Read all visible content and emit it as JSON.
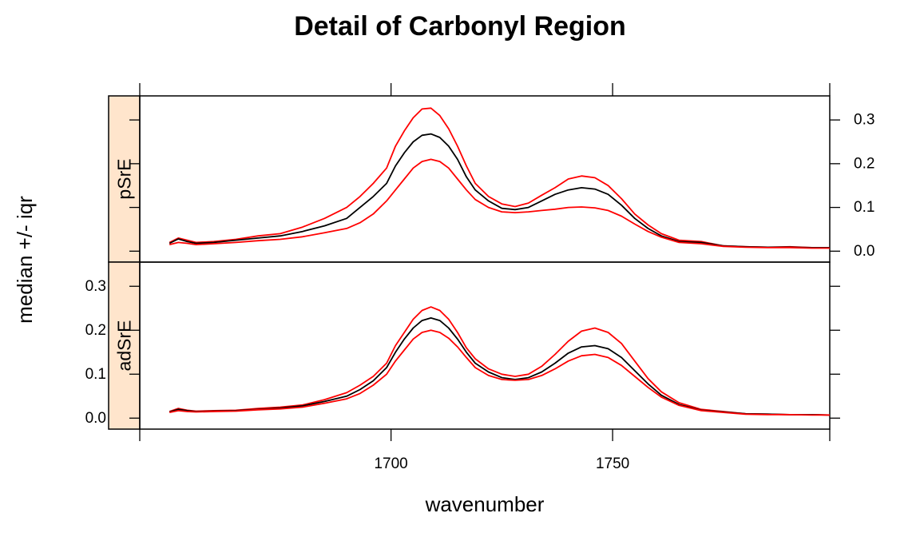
{
  "chart_data": {
    "type": "line",
    "title": "Detail of Carbonyl Region",
    "xlabel": "wavenumber",
    "ylabel": "median +/- iqr",
    "xlim": [
      1643.3,
      1799.0
    ],
    "ylim": [
      -0.025,
      0.355
    ],
    "x_ticks": [
      1700,
      1750
    ],
    "y_ticks": [
      0.0,
      0.1,
      0.2,
      0.3
    ],
    "y_tick_labels": [
      "0.0",
      "0.1",
      "0.2",
      "0.3"
    ],
    "strip_color": "#ffe5cc",
    "grid": false,
    "legend": "none",
    "panels": [
      {
        "label": "pSrE",
        "series": [
          {
            "role": "upper",
            "color": "#ff0000",
            "x": [
              1650,
              1652,
              1654,
              1656,
              1660,
              1665,
              1670,
              1675,
              1680,
              1685,
              1690,
              1693,
              1696,
              1699,
              1701,
              1703,
              1705,
              1707,
              1709,
              1711,
              1713,
              1715,
              1717,
              1719,
              1722,
              1725,
              1728,
              1731,
              1734,
              1737,
              1740,
              1743,
              1746,
              1749,
              1752,
              1755,
              1758,
              1761,
              1765,
              1770,
              1775,
              1780,
              1785,
              1790,
              1795,
              1799
            ],
            "values": [
              0.02,
              0.03,
              0.025,
              0.02,
              0.022,
              0.027,
              0.035,
              0.04,
              0.055,
              0.075,
              0.1,
              0.125,
              0.155,
              0.19,
              0.24,
              0.275,
              0.305,
              0.325,
              0.327,
              0.31,
              0.28,
              0.24,
              0.195,
              0.155,
              0.125,
              0.108,
              0.102,
              0.11,
              0.128,
              0.145,
              0.165,
              0.172,
              0.168,
              0.15,
              0.12,
              0.085,
              0.06,
              0.04,
              0.025,
              0.022,
              0.012,
              0.01,
              0.009,
              0.01,
              0.008,
              0.008
            ]
          },
          {
            "role": "median",
            "color": "#000000",
            "x": [
              1650,
              1652,
              1654,
              1656,
              1660,
              1665,
              1670,
              1675,
              1680,
              1685,
              1690,
              1693,
              1696,
              1699,
              1701,
              1703,
              1705,
              1707,
              1709,
              1711,
              1713,
              1715,
              1717,
              1719,
              1722,
              1725,
              1728,
              1731,
              1734,
              1737,
              1740,
              1743,
              1746,
              1749,
              1752,
              1755,
              1758,
              1761,
              1765,
              1770,
              1775,
              1780,
              1785,
              1790,
              1795,
              1799
            ],
            "values": [
              0.018,
              0.028,
              0.022,
              0.018,
              0.02,
              0.025,
              0.03,
              0.035,
              0.045,
              0.058,
              0.075,
              0.1,
              0.125,
              0.155,
              0.195,
              0.225,
              0.25,
              0.265,
              0.268,
              0.26,
              0.24,
              0.21,
              0.17,
              0.14,
              0.115,
              0.098,
              0.095,
              0.1,
              0.115,
              0.13,
              0.14,
              0.145,
              0.142,
              0.13,
              0.105,
              0.075,
              0.052,
              0.035,
              0.022,
              0.02,
              0.012,
              0.01,
              0.009,
              0.009,
              0.008,
              0.008
            ]
          },
          {
            "role": "lower",
            "color": "#ff0000",
            "x": [
              1650,
              1652,
              1654,
              1656,
              1660,
              1665,
              1670,
              1675,
              1680,
              1685,
              1690,
              1693,
              1696,
              1699,
              1701,
              1703,
              1705,
              1707,
              1709,
              1711,
              1713,
              1715,
              1717,
              1719,
              1722,
              1725,
              1728,
              1731,
              1734,
              1737,
              1740,
              1743,
              1746,
              1749,
              1752,
              1755,
              1758,
              1761,
              1765,
              1770,
              1775,
              1780,
              1785,
              1790,
              1795,
              1799
            ],
            "values": [
              0.015,
              0.02,
              0.018,
              0.015,
              0.017,
              0.02,
              0.024,
              0.027,
              0.033,
              0.042,
              0.052,
              0.065,
              0.085,
              0.115,
              0.14,
              0.165,
              0.19,
              0.205,
              0.21,
              0.205,
              0.19,
              0.165,
              0.14,
              0.118,
              0.1,
              0.09,
              0.088,
              0.09,
              0.093,
              0.096,
              0.1,
              0.101,
              0.099,
              0.093,
              0.08,
              0.062,
              0.045,
              0.032,
              0.02,
              0.017,
              0.011,
              0.009,
              0.008,
              0.008,
              0.007,
              0.007
            ]
          }
        ]
      },
      {
        "label": "adSrE",
        "series": [
          {
            "role": "upper",
            "color": "#ff0000",
            "x": [
              1650,
              1652,
              1654,
              1656,
              1660,
              1665,
              1670,
              1675,
              1680,
              1685,
              1690,
              1693,
              1696,
              1699,
              1701,
              1703,
              1705,
              1707,
              1709,
              1711,
              1713,
              1715,
              1717,
              1719,
              1722,
              1725,
              1728,
              1731,
              1734,
              1737,
              1740,
              1743,
              1746,
              1749,
              1752,
              1755,
              1758,
              1761,
              1765,
              1770,
              1775,
              1780,
              1785,
              1790,
              1795,
              1799
            ],
            "values": [
              0.015,
              0.022,
              0.018,
              0.016,
              0.017,
              0.018,
              0.022,
              0.025,
              0.03,
              0.042,
              0.058,
              0.075,
              0.095,
              0.125,
              0.165,
              0.195,
              0.225,
              0.245,
              0.253,
              0.245,
              0.225,
              0.195,
              0.16,
              0.135,
              0.112,
              0.1,
              0.095,
              0.1,
              0.118,
              0.145,
              0.175,
              0.198,
              0.205,
              0.195,
              0.17,
              0.13,
              0.09,
              0.06,
              0.035,
              0.02,
              0.015,
              0.01,
              0.009,
              0.008,
              0.008,
              0.007
            ]
          },
          {
            "role": "median",
            "color": "#000000",
            "x": [
              1650,
              1652,
              1654,
              1656,
              1660,
              1665,
              1670,
              1675,
              1680,
              1685,
              1690,
              1693,
              1696,
              1699,
              1701,
              1703,
              1705,
              1707,
              1709,
              1711,
              1713,
              1715,
              1717,
              1719,
              1722,
              1725,
              1728,
              1731,
              1734,
              1737,
              1740,
              1743,
              1746,
              1749,
              1752,
              1755,
              1758,
              1761,
              1765,
              1770,
              1775,
              1780,
              1785,
              1790,
              1795,
              1799
            ],
            "values": [
              0.014,
              0.02,
              0.017,
              0.015,
              0.016,
              0.017,
              0.02,
              0.023,
              0.028,
              0.038,
              0.05,
              0.065,
              0.085,
              0.115,
              0.15,
              0.18,
              0.205,
              0.222,
              0.228,
              0.222,
              0.205,
              0.18,
              0.15,
              0.125,
              0.105,
              0.092,
              0.088,
              0.092,
              0.105,
              0.125,
              0.148,
              0.162,
              0.165,
              0.158,
              0.138,
              0.108,
              0.078,
              0.052,
              0.031,
              0.018,
              0.014,
              0.01,
              0.009,
              0.008,
              0.008,
              0.007
            ]
          },
          {
            "role": "lower",
            "color": "#ff0000",
            "x": [
              1650,
              1652,
              1654,
              1656,
              1660,
              1665,
              1670,
              1675,
              1680,
              1685,
              1690,
              1693,
              1696,
              1699,
              1701,
              1703,
              1705,
              1707,
              1709,
              1711,
              1713,
              1715,
              1717,
              1719,
              1722,
              1725,
              1728,
              1731,
              1734,
              1737,
              1740,
              1743,
              1746,
              1749,
              1752,
              1755,
              1758,
              1761,
              1765,
              1770,
              1775,
              1780,
              1785,
              1790,
              1795,
              1799
            ],
            "values": [
              0.013,
              0.017,
              0.015,
              0.014,
              0.015,
              0.016,
              0.019,
              0.021,
              0.025,
              0.034,
              0.044,
              0.056,
              0.075,
              0.1,
              0.13,
              0.155,
              0.18,
              0.195,
              0.2,
              0.195,
              0.182,
              0.162,
              0.138,
              0.115,
              0.097,
              0.088,
              0.086,
              0.088,
              0.097,
              0.112,
              0.13,
              0.142,
              0.145,
              0.138,
              0.12,
              0.095,
              0.07,
              0.048,
              0.029,
              0.017,
              0.013,
              0.009,
              0.008,
              0.008,
              0.007,
              0.007
            ]
          }
        ]
      }
    ]
  }
}
